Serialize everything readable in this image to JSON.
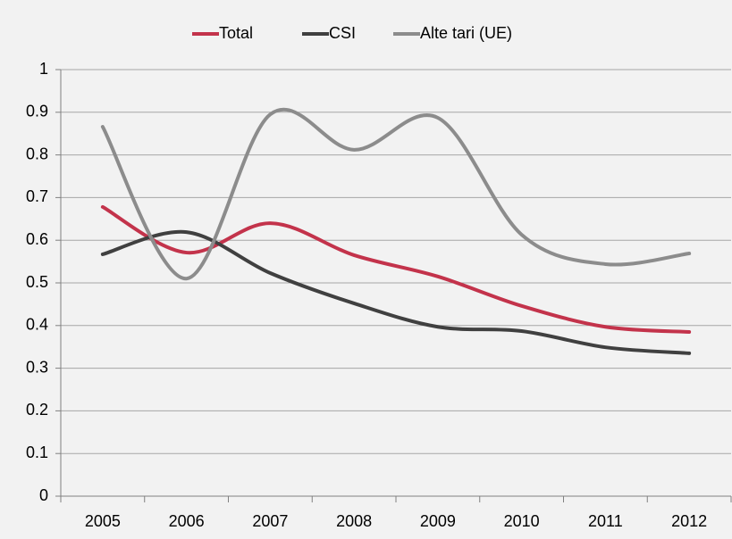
{
  "chart_data": {
    "type": "line",
    "categories": [
      "2005",
      "2006",
      "2007",
      "2008",
      "2009",
      "2010",
      "2011",
      "2012"
    ],
    "series": [
      {
        "name": "Total",
        "color": "#c3334b",
        "values": [
          0.678,
          0.571,
          0.64,
          0.565,
          0.515,
          0.446,
          0.397,
          0.385
        ]
      },
      {
        "name": "CSI",
        "color": "#404040",
        "values": [
          0.567,
          0.619,
          0.523,
          0.452,
          0.397,
          0.387,
          0.349,
          0.335
        ]
      },
      {
        "name": "Alte tari (UE)",
        "color": "#8c8c8c",
        "values": [
          0.866,
          0.51,
          0.895,
          0.812,
          0.887,
          0.613,
          0.544,
          0.569
        ]
      }
    ],
    "ylim": [
      0,
      1
    ],
    "yticks": [
      0,
      0.1,
      0.2,
      0.3,
      0.4,
      0.5,
      0.6,
      0.7,
      0.8,
      0.9,
      1
    ],
    "grid": true,
    "smooth": true,
    "legend": "top"
  }
}
